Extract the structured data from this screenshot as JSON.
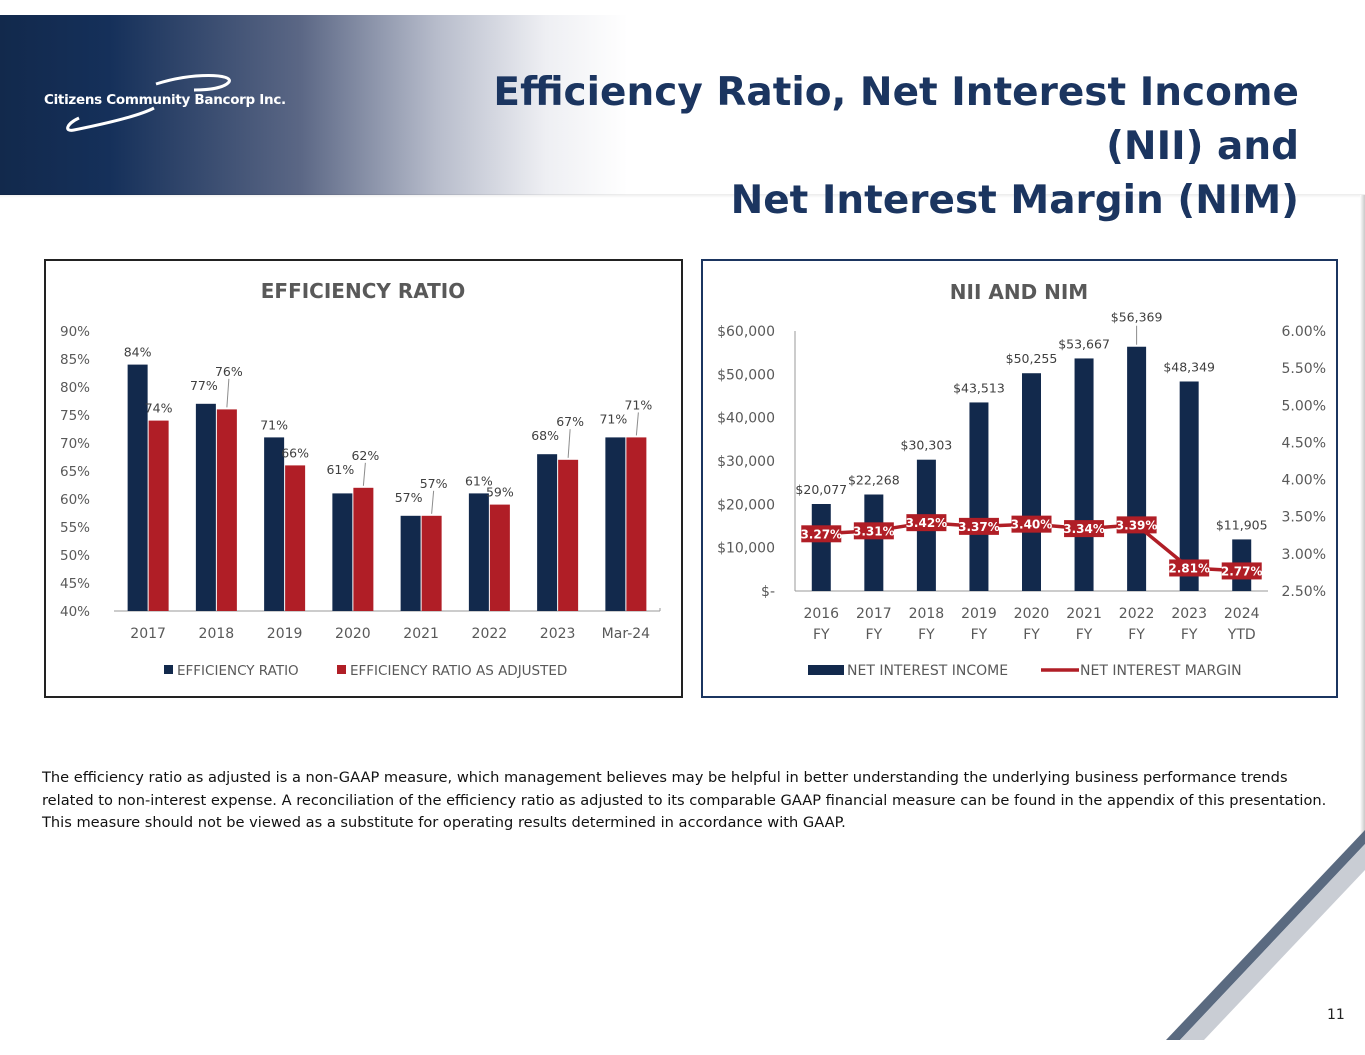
{
  "header": {
    "logo_text": "Citizens Community Bancorp Inc.",
    "title_line1": "Efficiency Ratio, Net Interest Income (NII) and",
    "title_line2": "Net Interest Margin (NIM)"
  },
  "colors": {
    "navy": "#12294c",
    "red": "#b01e26",
    "title_blue": "#1b3560"
  },
  "chart_data": [
    {
      "type": "bar",
      "title": "EFFICIENCY RATIO",
      "categories": [
        "2017",
        "2018",
        "2019",
        "2020",
        "2021",
        "2022",
        "2023",
        "Mar-24"
      ],
      "series": [
        {
          "name": "EFFICIENCY RATIO",
          "values": [
            84,
            77,
            71,
            61,
            57,
            61,
            68,
            71
          ],
          "labels": [
            "84%",
            "77%",
            "71%",
            "61%",
            "57%",
            "61%",
            "68%",
            "71%"
          ]
        },
        {
          "name": "EFFICIENCY RATIO AS ADJUSTED",
          "values": [
            74,
            76,
            66,
            62,
            57,
            59,
            67,
            71
          ],
          "labels": [
            "74%",
            "76%",
            "66%",
            "62%",
            "57%",
            "59%",
            "67%",
            "71%"
          ]
        }
      ],
      "ylim": [
        40,
        90
      ],
      "yticks": [
        "40%",
        "45%",
        "50%",
        "55%",
        "60%",
        "65%",
        "70%",
        "75%",
        "80%",
        "85%",
        "90%"
      ],
      "grid": false,
      "legend": "bottom"
    },
    {
      "type": "bar",
      "title": "NII AND NIM",
      "categories": [
        "2016 FY",
        "2017 FY",
        "2018 FY",
        "2019 FY",
        "2020 FY",
        "2021 FY",
        "2022 FY",
        "2023 FY",
        "2024 YTD"
      ],
      "series": [
        {
          "name": "NET INTEREST INCOME",
          "type": "bar",
          "axis": "left",
          "values": [
            20077,
            22268,
            30303,
            43513,
            50255,
            53667,
            56369,
            48349,
            11905
          ],
          "labels": [
            "$20,077",
            "$22,268",
            "$30,303",
            "$43,513",
            "$50,255",
            "$53,667",
            "$56,369",
            "$48,349",
            "$11,905"
          ]
        },
        {
          "name": "NET INTEREST MARGIN",
          "type": "line",
          "axis": "right",
          "values": [
            3.27,
            3.31,
            3.42,
            3.37,
            3.4,
            3.34,
            3.39,
            2.81,
            2.77
          ],
          "labels": [
            "3.27%",
            "3.31%",
            "3.42%",
            "3.37%",
            "3.40%",
            "3.34%",
            "3.39%",
            "2.81%",
            "2.77%"
          ]
        }
      ],
      "ylim": [
        0,
        60000
      ],
      "yticks": [
        "$-",
        "$10,000",
        "$20,000",
        "$30,000",
        "$40,000",
        "$50,000",
        "$60,000"
      ],
      "y2lim": [
        2.5,
        6.0
      ],
      "y2ticks": [
        "2.50%",
        "3.00%",
        "3.50%",
        "4.00%",
        "4.50%",
        "5.00%",
        "5.50%",
        "6.00%"
      ],
      "grid": false,
      "legend": "bottom"
    }
  ],
  "footnote": "The efficiency ratio as adjusted is a non-GAAP measure, which management believes may be helpful in better understanding the underlying business performance trends related to non-interest expense. A reconciliation of the efficiency ratio as adjusted to its comparable GAAP financial measure can be found in the appendix of this presentation. This measure should not be viewed as a substitute for operating results determined in accordance with GAAP.",
  "page_number": "11"
}
